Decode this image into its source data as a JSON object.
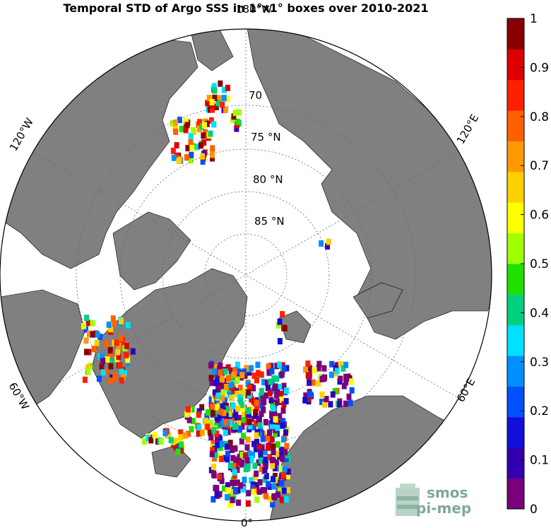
{
  "title": "Temporal STD of Argo SSS in 1°x1° boxes over 2010-2021",
  "map": {
    "projection": "north-polar-stereographic",
    "lat_labels": [
      "70",
      "75 °N",
      "80 °N",
      "85 °N"
    ],
    "lon_labels": {
      "top": "180°W",
      "bottom": "0°",
      "left_upper": "120°W",
      "left_lower": "60°W",
      "right_upper": "120°E",
      "right_lower": "60°E"
    },
    "land_color": "#808080",
    "ocean_color": "#ffffff",
    "grid": true
  },
  "colorbar": {
    "range": [
      0,
      1
    ],
    "ticks": [
      "0",
      "0.1",
      "0.2",
      "0.3",
      "0.4",
      "0.5",
      "0.6",
      "0.7",
      "0.8",
      "0.9",
      "1"
    ],
    "colors": [
      "#7a007a",
      "#3300b0",
      "#1010d8",
      "#0050ff",
      "#0090ff",
      "#00e0ff",
      "#00d080",
      "#20e000",
      "#a0ff00",
      "#ffff00",
      "#ffd000",
      "#ff9900",
      "#ff6000",
      "#ff2000",
      "#dd0000",
      "#880000"
    ]
  },
  "logo": {
    "line1": "smos",
    "line2": "pi-mep"
  }
}
